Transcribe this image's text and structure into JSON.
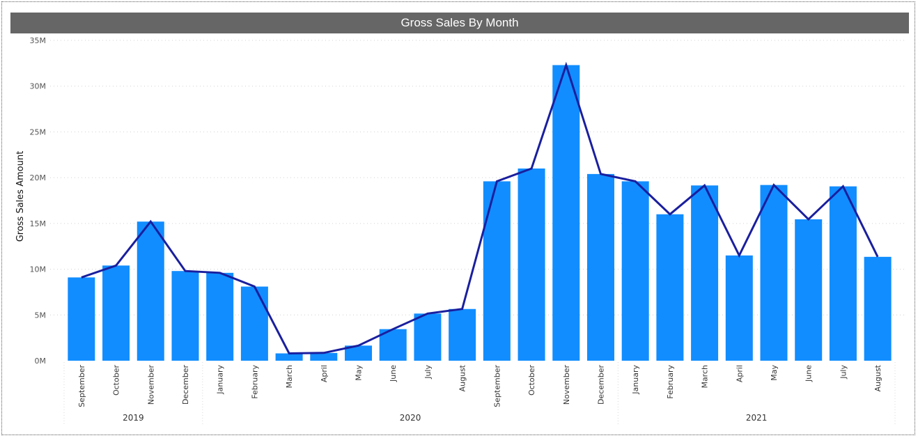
{
  "chart_data": {
    "type": "bar",
    "title": "Gross Sales By Month",
    "ylabel": "Gross Sales Amount",
    "xlabel": "",
    "ylim": [
      0,
      35000000
    ],
    "y_ticks": [
      "0M",
      "5M",
      "10M",
      "15M",
      "20M",
      "25M",
      "30M",
      "35M"
    ],
    "grid": true,
    "categories": [
      "September",
      "October",
      "November",
      "December",
      "January",
      "February",
      "March",
      "April",
      "May",
      "June",
      "July",
      "August",
      "September",
      "October",
      "November",
      "December",
      "January",
      "February",
      "March",
      "April",
      "May",
      "June",
      "July",
      "August"
    ],
    "years": [
      {
        "label": "2019",
        "count": 4
      },
      {
        "label": "2020",
        "count": 12
      },
      {
        "label": "2021",
        "count": 8
      }
    ],
    "series": [
      {
        "type": "bar",
        "color": "#118DFF",
        "values": [
          9100000,
          10400000,
          15200000,
          9800000,
          9600000,
          8100000,
          800000,
          850000,
          1650000,
          3450000,
          5150000,
          5650000,
          19600000,
          21000000,
          32300000,
          20400000,
          19600000,
          16000000,
          19150000,
          11500000,
          19200000,
          15450000,
          19050000,
          11350000
        ]
      },
      {
        "type": "line",
        "color": "#1a1f9e",
        "values": [
          9100000,
          10400000,
          15200000,
          9800000,
          9600000,
          8100000,
          800000,
          850000,
          1650000,
          3450000,
          5150000,
          5650000,
          19600000,
          21000000,
          32300000,
          20400000,
          19600000,
          16000000,
          19150000,
          11500000,
          19200000,
          15450000,
          19050000,
          11350000
        ]
      }
    ]
  }
}
